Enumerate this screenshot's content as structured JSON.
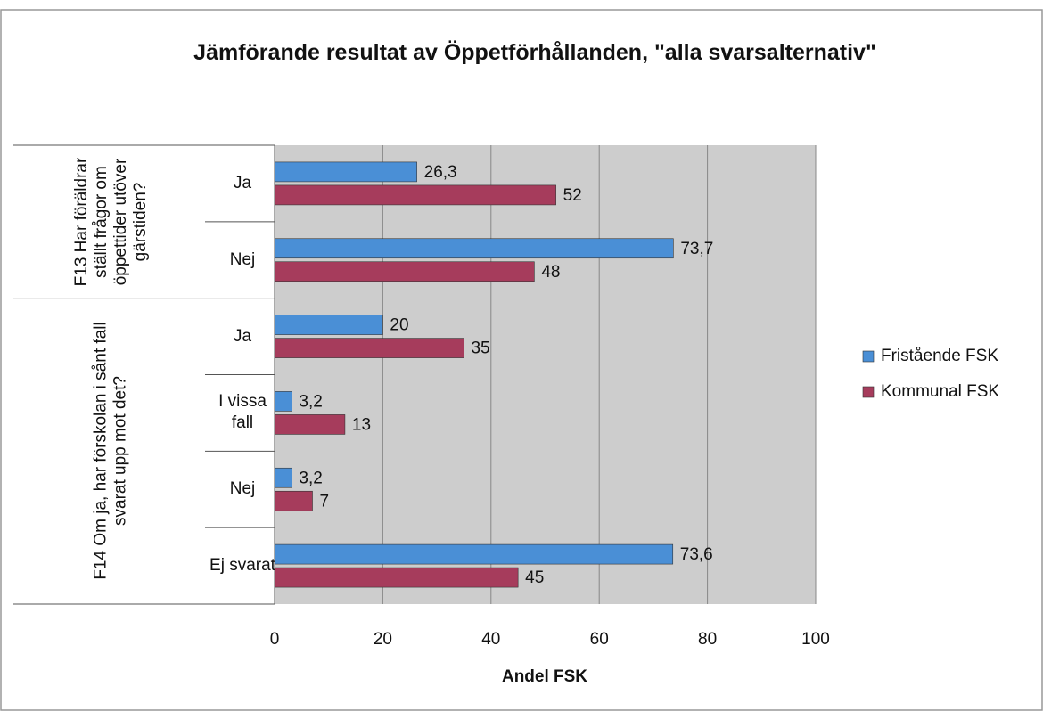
{
  "chart_data": {
    "type": "hbar",
    "title": "Jämförande resultat av Öppetförhållanden, \"alla svarsalternativ\"",
    "x_label": "Andel FSK",
    "groups": [
      {
        "label": "F13 Har föräldrar ställt frågor om öppettider utöver gärstiden?",
        "categories": [
          "Ja",
          "Nej"
        ]
      },
      {
        "label": "F14 Om ja, har förskolan i sånt fall svarat upp mot det?",
        "categories": [
          "Ja",
          "I vissa fall",
          "Nej",
          "Ej svarat"
        ]
      }
    ],
    "series": [
      {
        "name": "Fristående FSK",
        "color": "#4a8fd6",
        "values": [
          26.3,
          73.7,
          20,
          3.2,
          3.2,
          73.6
        ],
        "value_labels": [
          "26,3",
          "73,7",
          "20",
          "3,2",
          "3,2",
          "73,6"
        ]
      },
      {
        "name": "Kommunal FSK",
        "color": "#a63c5c",
        "values": [
          52,
          48,
          35,
          13,
          7,
          45
        ]
      }
    ],
    "xlim": [
      0,
      100
    ],
    "xticks": [
      0,
      20,
      40,
      60,
      80,
      100
    ],
    "grid": true,
    "legend": "right"
  }
}
